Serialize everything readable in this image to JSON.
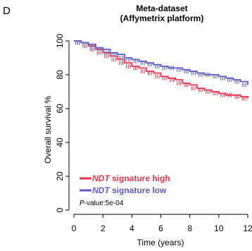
{
  "panel_label": "D",
  "chart_data": {
    "type": "line",
    "title_line1": "Meta-dataset",
    "title_line2": "(Affymetrix platform)",
    "xlabel": "Time (years)",
    "ylabel": "Overall survival %",
    "xlim": [
      0,
      12
    ],
    "ylim": [
      0,
      100
    ],
    "x_ticks": [
      "0",
      "2",
      "4",
      "6",
      "8",
      "10",
      "12"
    ],
    "y_ticks": [
      "0",
      "20",
      "40",
      "60",
      "80",
      "100"
    ],
    "legend_position": "bottom-left",
    "series": [
      {
        "name_italic": "NDT",
        "name_rest": " signature high",
        "color": "#e8344e",
        "x": [
          0,
          0.5,
          1,
          1.5,
          2,
          2.5,
          3,
          3.5,
          4,
          4.5,
          5,
          5.5,
          6,
          6.5,
          7,
          7.5,
          8,
          8.5,
          9,
          9.5,
          10,
          10.5,
          11,
          11.5,
          12
        ],
        "y": [
          100,
          99,
          97,
          95,
          93,
          91,
          89,
          87,
          85,
          84,
          82,
          81,
          79,
          78,
          77,
          75,
          74,
          72,
          71,
          70,
          69,
          68,
          68,
          67,
          66
        ]
      },
      {
        "name_italic": "NDT",
        "name_rest": " signature low",
        "color": "#5c5cc0",
        "x": [
          0,
          0.5,
          1,
          1.5,
          2,
          2.5,
          3,
          3.5,
          4,
          4.5,
          5,
          5.5,
          6,
          6.5,
          7,
          7.5,
          8,
          8.5,
          9,
          9.5,
          10,
          10.5,
          11,
          11.5,
          12
        ],
        "y": [
          100,
          99,
          98,
          96,
          95,
          93,
          92,
          90,
          89,
          88,
          87,
          86,
          85,
          84,
          84,
          83,
          82,
          81,
          80,
          80,
          79,
          78,
          77,
          76,
          74
        ]
      }
    ],
    "pvalue_italic": "P",
    "pvalue_rest": "-value:5e-04"
  }
}
